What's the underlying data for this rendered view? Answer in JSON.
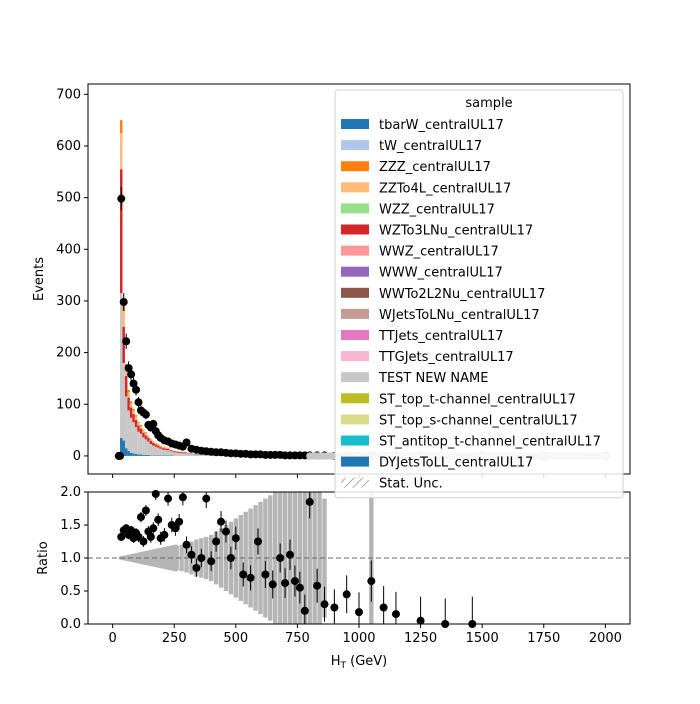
{
  "chart_data": [
    {
      "type": "bar",
      "stacked": true,
      "ylabel": "Events",
      "ylim": [
        -35,
        720
      ],
      "xlim": [
        -100,
        2100
      ],
      "y_ticks": [
        0,
        100,
        200,
        300,
        400,
        500,
        600,
        700
      ],
      "x_ticks": [
        0,
        250,
        500,
        750,
        1000,
        1250,
        1500,
        1750,
        2000
      ],
      "x_tick_labels": [
        "",
        "",
        "",
        "",
        "",
        "",
        "",
        "",
        ""
      ],
      "legend": {
        "title": "sample",
        "placement": "upper-right",
        "entries": [
          {
            "name": "tbarW_centralUL17",
            "color": "#1f77b4"
          },
          {
            "name": "tW_centralUL17",
            "color": "#aec7e8"
          },
          {
            "name": "ZZZ_centralUL17",
            "color": "#ff7f0e"
          },
          {
            "name": "ZZTo4L_centralUL17",
            "color": "#ffbb78"
          },
          {
            "name": "WZZ_centralUL17",
            "color": "#98df8a"
          },
          {
            "name": "WZTo3LNu_centralUL17",
            "color": "#d62728"
          },
          {
            "name": "WWZ_centralUL17",
            "color": "#ff9896"
          },
          {
            "name": "WWW_centralUL17",
            "color": "#9467bd"
          },
          {
            "name": "WWTo2L2Nu_centralUL17",
            "color": "#8c564b"
          },
          {
            "name": "WJetsToLNu_centralUL17",
            "color": "#c49c94"
          },
          {
            "name": "TTJets_centralUL17",
            "color": "#e377c2"
          },
          {
            "name": "TTGJets_centralUL17",
            "color": "#f7b6d2"
          },
          {
            "name": "TEST NEW NAME",
            "color": "#c7c7c7"
          },
          {
            "name": "ST_top_t-channel_centralUL17",
            "color": "#bcbd22"
          },
          {
            "name": "ST_top_s-channel_centralUL17",
            "color": "#dbdb8d"
          },
          {
            "name": "ST_antitop_t-channel_centralUL17",
            "color": "#17becf"
          },
          {
            "name": "DYJetsToLL_centralUL17",
            "color": "#1f77b4"
          },
          {
            "name": "Stat. Unc.",
            "color": "hatch"
          }
        ]
      },
      "bin_edges": [
        20,
        30,
        40,
        50,
        60,
        70,
        80,
        90,
        100,
        110,
        120,
        130,
        140,
        150,
        160,
        170,
        180,
        190,
        200,
        215,
        230,
        245,
        260,
        280,
        300,
        325,
        350,
        380,
        410,
        450,
        500,
        560,
        620,
        700,
        800,
        900,
        1000,
        1100,
        1250,
        1500,
        2000
      ],
      "series": [
        {
          "name": "tbarW_centralUL17",
          "color": "#1f77b4",
          "values": [
            0,
            35,
            30,
            15,
            10,
            6,
            5,
            4,
            3,
            3,
            2,
            2,
            2,
            1,
            1,
            1,
            1,
            1,
            1,
            1,
            1,
            0,
            0,
            0,
            0,
            0,
            0,
            0,
            0,
            0,
            0,
            0,
            0,
            0,
            0,
            0,
            0,
            0,
            0,
            0
          ]
        },
        {
          "name": "TEST NEW NAME",
          "color": "#c7c7c7",
          "values": [
            0,
            280,
            150,
            100,
            78,
            68,
            60,
            52,
            44,
            40,
            34,
            30,
            26,
            22,
            19,
            17,
            15,
            13,
            11,
            10,
            8,
            7,
            6,
            5,
            4,
            3,
            3,
            2,
            2,
            1,
            1,
            1,
            1,
            0,
            0,
            0,
            0,
            0,
            0,
            0
          ]
        },
        {
          "name": "WZTo3LNu_centralUL17",
          "color": "#d62728",
          "values": [
            0,
            240,
            70,
            40,
            25,
            20,
            16,
            14,
            12,
            10,
            9,
            8,
            7,
            6,
            5,
            4,
            4,
            3,
            3,
            3,
            2,
            2,
            2,
            2,
            1,
            1,
            1,
            1,
            1,
            0,
            0,
            0,
            0,
            0,
            0,
            0,
            0,
            0,
            0,
            0
          ]
        },
        {
          "name": "ZZTo4L_centralUL17",
          "color": "#ffbb78",
          "values": [
            0,
            70,
            30,
            15,
            10,
            8,
            7,
            6,
            5,
            5,
            4,
            4,
            3,
            3,
            3,
            2,
            2,
            2,
            2,
            1,
            1,
            1,
            1,
            1,
            1,
            0,
            0,
            0,
            0,
            0,
            0,
            0,
            0,
            0,
            0,
            0,
            0,
            0,
            0,
            0
          ]
        },
        {
          "name": "ZZZ_centralUL17",
          "color": "#ff7f0e",
          "values": [
            0,
            25,
            15,
            8,
            5,
            4,
            3,
            3,
            2,
            2,
            2,
            2,
            1,
            1,
            1,
            1,
            1,
            1,
            1,
            1,
            0,
            0,
            0,
            0,
            0,
            0,
            0,
            0,
            0,
            0,
            0,
            0,
            0,
            0,
            0,
            0,
            0,
            0,
            0,
            0
          ]
        }
      ],
      "data_points": {
        "name": "Data",
        "x": [
          25,
          30,
          35,
          45,
          55,
          65,
          75,
          85,
          95,
          105,
          115,
          125,
          135,
          145,
          155,
          165,
          175,
          185,
          195,
          210,
          225,
          240,
          255,
          270,
          285,
          300,
          320,
          340,
          360,
          380,
          400,
          420,
          440,
          460,
          480,
          500,
          520,
          540,
          560,
          580,
          600,
          620,
          640,
          660,
          680,
          700,
          720,
          740,
          760,
          780,
          800,
          830,
          860,
          900,
          950,
          1000,
          1050,
          1100,
          1150,
          1250,
          1500,
          1750,
          2000
        ],
        "y": [
          0,
          0,
          498,
          298,
          222,
          170,
          158,
          140,
          128,
          104,
          88,
          84,
          80,
          60,
          55,
          62,
          48,
          40,
          35,
          30,
          28,
          24,
          22,
          20,
          18,
          26,
          14,
          12,
          10,
          9,
          8,
          7,
          7,
          6,
          5,
          5,
          4,
          4,
          3,
          3,
          3,
          2,
          2,
          2,
          2,
          1,
          1,
          1,
          1,
          1,
          1,
          1,
          1,
          0,
          0,
          0,
          0,
          0,
          0,
          0,
          0,
          0,
          0
        ]
      }
    },
    {
      "type": "scatter",
      "xlabel": "H_T (GeV)",
      "ylabel": "Ratio",
      "ylim": [
        0,
        2
      ],
      "xlim": [
        -100,
        2100
      ],
      "y_ticks": [
        0.0,
        0.5,
        1.0,
        1.5,
        2.0
      ],
      "y_tick_labels": [
        "0.0",
        "0.5",
        "1.0",
        "1.5",
        "2.0"
      ],
      "x_ticks": [
        0,
        250,
        500,
        750,
        1000,
        1250,
        1500,
        1750,
        2000
      ],
      "x_tick_labels": [
        "0",
        "250",
        "500",
        "750",
        "1000",
        "1250",
        "1500",
        "1750",
        "2000"
      ],
      "reference_line": 1.0,
      "points": {
        "x": [
          35,
          45,
          55,
          65,
          75,
          85,
          95,
          105,
          115,
          125,
          135,
          145,
          155,
          165,
          175,
          185,
          195,
          210,
          225,
          240,
          255,
          270,
          285,
          300,
          320,
          340,
          360,
          380,
          400,
          420,
          440,
          460,
          480,
          500,
          530,
          560,
          590,
          620,
          650,
          680,
          700,
          720,
          740,
          760,
          780,
          800,
          830,
          860,
          900,
          950,
          1000,
          1050,
          1100,
          1150,
          1250,
          1350,
          1460
        ],
        "y": [
          1.32,
          1.42,
          1.45,
          1.35,
          1.42,
          1.3,
          1.38,
          1.32,
          1.62,
          1.25,
          1.72,
          1.4,
          1.32,
          1.45,
          1.97,
          1.58,
          1.3,
          1.35,
          1.9,
          1.5,
          1.45,
          1.55,
          1.92,
          1.2,
          1.05,
          0.85,
          1.0,
          1.9,
          0.95,
          1.25,
          1.55,
          1.4,
          1.0,
          1.3,
          0.75,
          0.7,
          1.25,
          0.75,
          0.6,
          1.0,
          0.62,
          1.05,
          0.65,
          0.55,
          0.2,
          1.85,
          0.58,
          0.3,
          0.25,
          0.45,
          0.18,
          0.65,
          0.25,
          0.15,
          0.05,
          0.0,
          0.0
        ]
      },
      "unc_band": {
        "x": [
          40,
          60,
          80,
          100,
          120,
          140,
          160,
          180,
          200,
          220,
          240,
          260,
          280,
          300,
          320,
          340,
          360,
          380,
          400,
          420,
          440,
          460,
          480,
          500,
          520,
          540,
          560,
          580,
          600,
          620,
          640,
          660,
          680,
          700,
          720,
          740,
          760,
          780,
          800,
          820,
          840,
          860,
          1050
        ],
        "half_width": [
          0.02,
          0.03,
          0.04,
          0.05,
          0.06,
          0.07,
          0.09,
          0.1,
          0.12,
          0.14,
          0.16,
          0.18,
          0.2,
          0.22,
          0.25,
          0.28,
          0.3,
          0.32,
          0.35,
          0.4,
          0.45,
          0.5,
          0.55,
          0.6,
          0.65,
          0.7,
          0.75,
          0.8,
          0.85,
          0.9,
          0.95,
          1.0,
          1.0,
          1.0,
          1.0,
          1.0,
          1.0,
          1.0,
          1.0,
          1.0,
          1.0,
          0.9,
          1.0
        ]
      }
    }
  ]
}
